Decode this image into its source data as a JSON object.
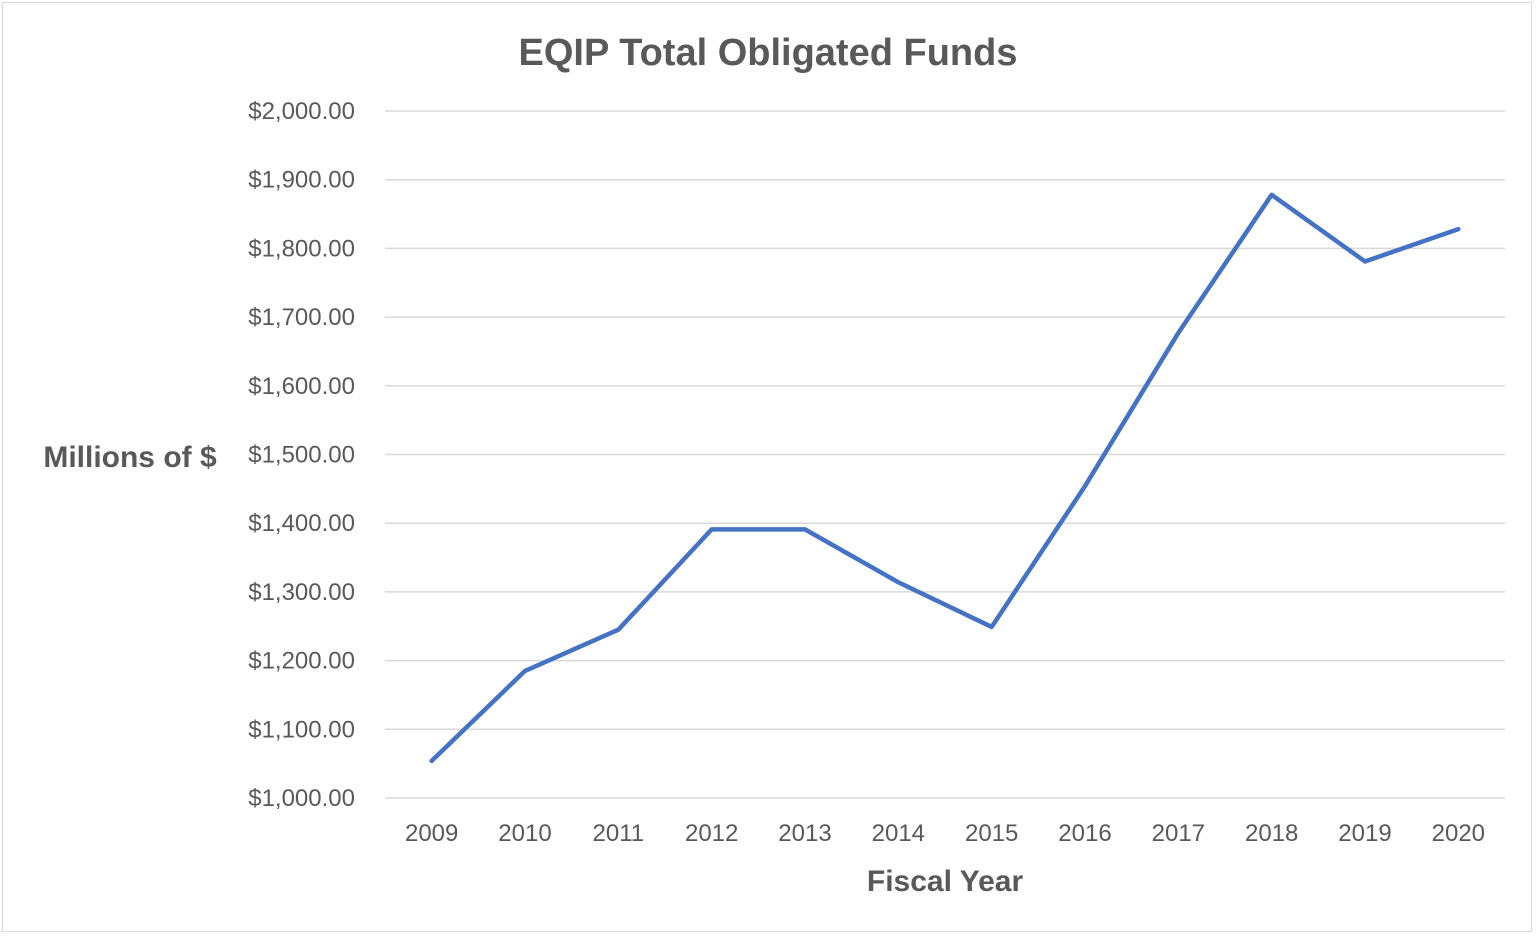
{
  "chart_data": {
    "type": "line",
    "title": "EQIP Total Obligated Funds",
    "xlabel": "Fiscal Year",
    "ylabel": "Millions of $",
    "categories": [
      "2009",
      "2010",
      "2011",
      "2012",
      "2013",
      "2014",
      "2015",
      "2016",
      "2017",
      "2018",
      "2019",
      "2020"
    ],
    "series": [
      {
        "values": [
          1054,
          1185,
          1245,
          1391,
          1391,
          1314,
          1249,
          1454,
          1677,
          1878,
          1781,
          1828
        ],
        "color": "#4472C4"
      }
    ],
    "ylim": [
      1000,
      2000
    ],
    "yticks": [
      1000,
      1100,
      1200,
      1300,
      1400,
      1500,
      1600,
      1700,
      1800,
      1900,
      2000
    ],
    "ytick_labels": [
      "$1,000.00",
      "$1,100.00",
      "$1,200.00",
      "$1,300.00",
      "$1,400.00",
      "$1,500.00",
      "$1,600.00",
      "$1,700.00",
      "$1,800.00",
      "$1,900.00",
      "$2,000.00"
    ],
    "grid": true,
    "legend": "none"
  }
}
